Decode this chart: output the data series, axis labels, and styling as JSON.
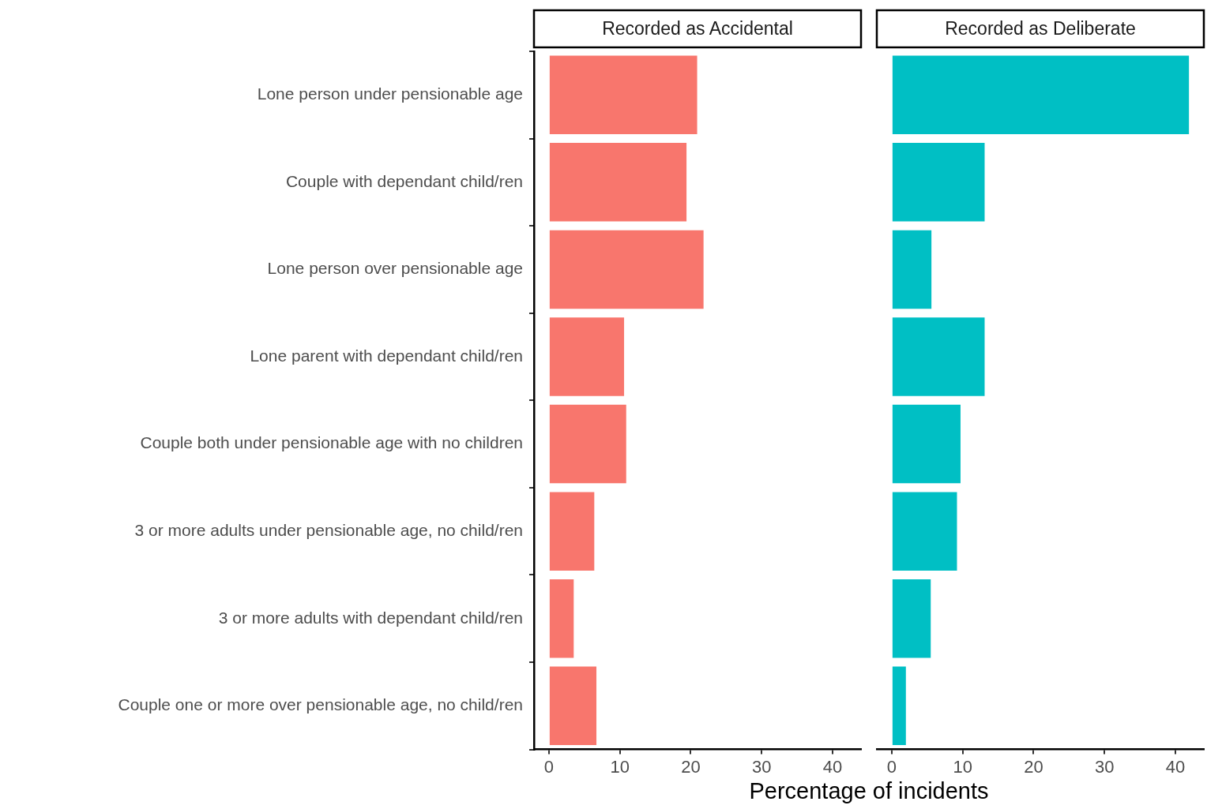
{
  "chart_data": [
    {
      "type": "bar",
      "orientation": "horizontal",
      "title": "Recorded as Accidental",
      "xlabel": "Percentage of incidents",
      "categories": [
        "Lone person under pensionable age",
        "Couple with dependant child/ren",
        "Lone person over pensionable age",
        "Lone parent with dependant child/ren",
        "Couple both under pensionable age with no children",
        "3 or more adults under pensionable age, no child/ren",
        "3 or more adults with dependant child/ren",
        "Couple one or more over pensionable age, no child/ren"
      ],
      "values": [
        20.9,
        19.4,
        21.8,
        10.6,
        10.9,
        6.4,
        3.5,
        6.7
      ],
      "color": "#f8766d",
      "xlim": [
        -2.1,
        44
      ],
      "xticks": [
        0,
        10,
        20,
        30,
        40
      ],
      "legend": false
    },
    {
      "type": "bar",
      "orientation": "horizontal",
      "title": "Recorded as Deliberate",
      "categories": [
        null,
        null,
        null,
        null,
        null,
        null,
        null,
        null
      ],
      "values": [
        41.9,
        13.1,
        5.6,
        13.1,
        9.7,
        9.2,
        5.5,
        2.0
      ],
      "color": "#00bfc4",
      "xlim": [
        -2.1,
        44
      ],
      "xticks": [
        0,
        10,
        20,
        30,
        40
      ],
      "tick_labels": "x",
      "legend": false
    }
  ]
}
